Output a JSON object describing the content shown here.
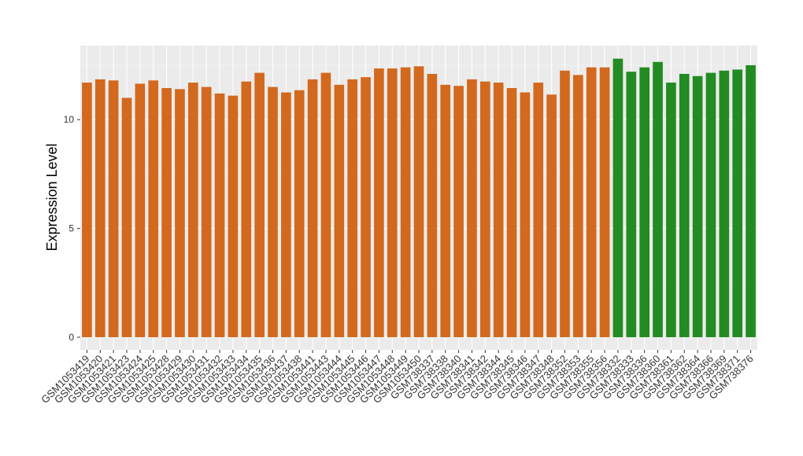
{
  "chart_data": {
    "type": "bar",
    "y_label": "Expression Level",
    "categories": [
      "GSM1053419",
      "GSM1053420",
      "GSM1053421",
      "GSM1053423",
      "GSM1053424",
      "GSM1053425",
      "GSM1053428",
      "GSM1053429",
      "GSM1053430",
      "GSM1053431",
      "GSM1053432",
      "GSM1053433",
      "GSM1053434",
      "GSM1053435",
      "GSM1053436",
      "GSM1053437",
      "GSM1053438",
      "GSM1053441",
      "GSM1053443",
      "GSM1053444",
      "GSM1053445",
      "GSM1053446",
      "GSM1053447",
      "GSM1053448",
      "GSM1053449",
      "GSM1053450",
      "GSM738337",
      "GSM738338",
      "GSM738340",
      "GSM738341",
      "GSM738342",
      "GSM738344",
      "GSM738345",
      "GSM738346",
      "GSM738347",
      "GSM738348",
      "GSM738352",
      "GSM738353",
      "GSM738355",
      "GSM738356",
      "GSM738332",
      "GSM738333",
      "GSM738336",
      "GSM738360",
      "GSM738361",
      "GSM738362",
      "GSM738364",
      "GSM738366",
      "GSM738369",
      "GSM738371",
      "GSM738376"
    ],
    "values": [
      11.7,
      11.85,
      11.8,
      11.0,
      11.65,
      11.8,
      11.45,
      11.4,
      11.7,
      11.5,
      11.2,
      11.1,
      11.75,
      12.15,
      11.5,
      11.25,
      11.35,
      11.85,
      12.15,
      11.6,
      11.85,
      11.95,
      12.35,
      12.35,
      12.4,
      12.45,
      12.1,
      11.6,
      11.55,
      11.85,
      11.75,
      11.7,
      11.45,
      11.25,
      11.7,
      11.15,
      12.25,
      12.05,
      12.4,
      12.4,
      12.8,
      12.2,
      12.4,
      12.65,
      11.7,
      12.1,
      12.0,
      12.15,
      12.25,
      12.3,
      12.5
    ],
    "colors": [
      "#d2691e",
      "#d2691e",
      "#d2691e",
      "#d2691e",
      "#d2691e",
      "#d2691e",
      "#d2691e",
      "#d2691e",
      "#d2691e",
      "#d2691e",
      "#d2691e",
      "#d2691e",
      "#d2691e",
      "#d2691e",
      "#d2691e",
      "#d2691e",
      "#d2691e",
      "#d2691e",
      "#d2691e",
      "#d2691e",
      "#d2691e",
      "#d2691e",
      "#d2691e",
      "#d2691e",
      "#d2691e",
      "#d2691e",
      "#d2691e",
      "#d2691e",
      "#d2691e",
      "#d2691e",
      "#d2691e",
      "#d2691e",
      "#d2691e",
      "#d2691e",
      "#d2691e",
      "#d2691e",
      "#d2691e",
      "#d2691e",
      "#d2691e",
      "#d2691e",
      "#228b22",
      "#228b22",
      "#228b22",
      "#228b22",
      "#228b22",
      "#228b22",
      "#228b22",
      "#228b22",
      "#228b22",
      "#228b22",
      "#228b22"
    ],
    "ylim": [
      -0.58,
      13.4
    ],
    "yticks": [
      0,
      5,
      10
    ],
    "grid": true
  }
}
